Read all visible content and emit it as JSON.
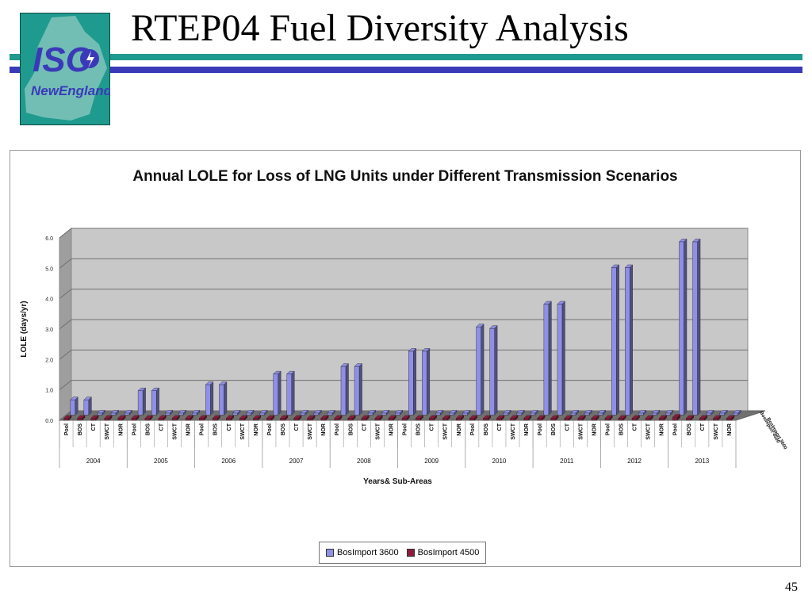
{
  "slide": {
    "title": "RTEP04 Fuel Diversity Analysis",
    "page_number": "45",
    "logo": {
      "text_top": "ISO",
      "text_bottom": "NewEngland",
      "bg_color": "#1f9a8e"
    },
    "colors": {
      "line_top": "#1f9a8e",
      "line_bottom": "#3a3ab8"
    }
  },
  "chart_data": {
    "type": "bar",
    "title": "Annual LOLE for Loss of LNG Units under Different Transmission Scenarios",
    "xlabel": "Years& Sub-Areas",
    "ylabel": "LOLE (days/yr)",
    "ylim": [
      0,
      6
    ],
    "yticks": [
      "0.0",
      "1.0",
      "2.0",
      "3.0",
      "4.0",
      "5.0",
      "6.0"
    ],
    "grid": true,
    "legend_position": "bottom",
    "years": [
      "2004",
      "2005",
      "2006",
      "2007",
      "2008",
      "2009",
      "2010",
      "2011",
      "2012",
      "2013"
    ],
    "subareas": [
      "Pool",
      "BOS",
      "CT",
      "SWCT",
      "NOR"
    ],
    "series_depth_labels": [
      "BosImport 4500",
      "BosImport 3600"
    ],
    "series": [
      {
        "name": "BosImport 3600",
        "color": "#8f8fe8",
        "values": [
          [
            0.5,
            0.5,
            0,
            0,
            0
          ],
          [
            0.8,
            0.8,
            0,
            0,
            0
          ],
          [
            1.0,
            1.0,
            0,
            0,
            0
          ],
          [
            1.35,
            1.35,
            0,
            0,
            0
          ],
          [
            1.6,
            1.6,
            0,
            0,
            0
          ],
          [
            2.1,
            2.1,
            0,
            0,
            0
          ],
          [
            2.9,
            2.85,
            0,
            0,
            0
          ],
          [
            3.65,
            3.65,
            0,
            0,
            0
          ],
          [
            4.85,
            4.85,
            0,
            0,
            0.02
          ],
          [
            5.7,
            5.7,
            0,
            0,
            0.05
          ]
        ]
      },
      {
        "name": "BosImport 4500",
        "color": "#8b1c3c",
        "values": [
          [
            0,
            0,
            0,
            0,
            0
          ],
          [
            0,
            0,
            0,
            0,
            0
          ],
          [
            0,
            0,
            0,
            0,
            0
          ],
          [
            0,
            0,
            0,
            0,
            0
          ],
          [
            0,
            0,
            0,
            0,
            0
          ],
          [
            0,
            0,
            0,
            0,
            0
          ],
          [
            0,
            0,
            0,
            0,
            0
          ],
          [
            0.03,
            0,
            0,
            0,
            0
          ],
          [
            0.05,
            0.03,
            0,
            0.03,
            0.03
          ],
          [
            0.1,
            0.05,
            0,
            0.03,
            0.03
          ]
        ]
      }
    ]
  }
}
